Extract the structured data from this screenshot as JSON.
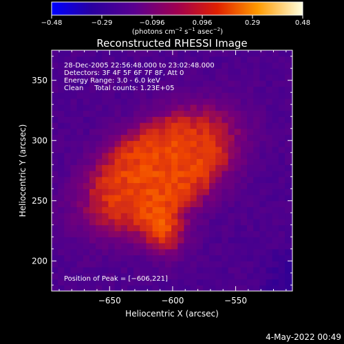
{
  "chart_data": {
    "type": "heatmap",
    "title": "Reconstructed RHESSI Image",
    "xlabel": "Heliocentric X (arcsec)",
    "ylabel": "Heliocentric Y (arcsec)",
    "xlim": [
      -696,
      -600.5,
      -505
    ],
    "x_range": [
      -696,
      -505
    ],
    "y_range": [
      175,
      375
    ],
    "x_ticks": [
      -650,
      -600,
      -550
    ],
    "x_tick_labels": [
      "−650",
      "−600",
      "−550"
    ],
    "y_ticks": [
      200,
      250,
      300,
      350
    ],
    "y_tick_labels": [
      "200",
      "250",
      "300",
      "350"
    ],
    "colorbar": {
      "range": [
        -0.48,
        0.48
      ],
      "tick_labels": [
        "−0.48",
        "−0.29",
        "−0.096",
        "0.096",
        "0.29",
        "0.48"
      ],
      "unit_parts": [
        "(photons cm",
        "−2",
        " s",
        "−1",
        " asec",
        "−2",
        ")"
      ]
    },
    "annotations": [
      "28-Dec-2005 22:56:48.000 to 23:02:48.000",
      "Detectors: 3F 4F 5F 6F 7F 8F, Att 0",
      "Energy Range: 3.0 - 6.0 keV",
      "Clean     Total counts: 1.23E+05"
    ],
    "peak_label": "Position of Peak = [−606,221]",
    "peak": [
      -606,
      221
    ],
    "source": {
      "center": [
        -610,
        275
      ],
      "semi_major": 68,
      "semi_minor": 40,
      "angle_deg": 35
    },
    "grid": false
  },
  "footer": {
    "date": "4-May-2022 00:49"
  },
  "colors": {
    "background": "#000000",
    "colormap_stops": [
      "#0000ff",
      "#3c0078",
      "#82108c",
      "#be1e1e",
      "#ff5a00",
      "#ffc814",
      "#ffffff"
    ]
  }
}
